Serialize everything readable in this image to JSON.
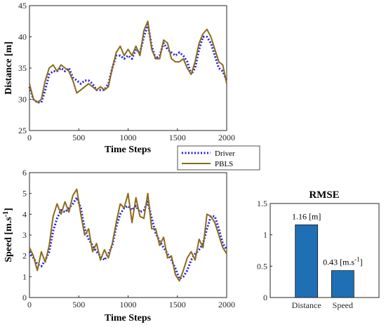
{
  "chart_data": [
    {
      "id": "distance",
      "type": "line",
      "xlabel": "Time Steps",
      "ylabel": "Distance [m]",
      "xlim": [
        0,
        2000
      ],
      "ylim": [
        25,
        45
      ],
      "xticks": [
        "0",
        "500",
        "1000",
        "1500",
        "2000"
      ],
      "yticks": [
        "25",
        "30",
        "35",
        "40",
        "45"
      ],
      "colors": {
        "Driver": "#1f1fe6",
        "PBLS": "#8b6b1a"
      },
      "series": [
        {
          "name": "Driver",
          "x": [
            0,
            40,
            80,
            120,
            160,
            200,
            240,
            280,
            320,
            360,
            400,
            440,
            480,
            520,
            560,
            600,
            640,
            680,
            720,
            760,
            800,
            840,
            880,
            920,
            960,
            1000,
            1040,
            1080,
            1120,
            1160,
            1200,
            1240,
            1280,
            1320,
            1360,
            1400,
            1440,
            1480,
            1520,
            1560,
            1600,
            1640,
            1680,
            1720,
            1760,
            1800,
            1840,
            1880,
            1920,
            1960,
            2000
          ],
          "values": [
            32,
            30,
            29.5,
            29.5,
            31.5,
            34,
            34.5,
            34.5,
            35,
            34.5,
            35,
            33.5,
            33,
            32.5,
            33,
            33,
            32.5,
            31.5,
            31.5,
            31.5,
            32.5,
            35,
            37,
            37,
            36.5,
            37,
            36.5,
            38,
            37.5,
            40,
            42,
            38.5,
            36.5,
            37,
            39,
            38,
            37.5,
            37,
            37.5,
            37,
            36,
            34,
            35,
            38,
            40,
            40,
            39,
            37,
            35,
            34.5,
            33
          ]
        },
        {
          "name": "PBLS",
          "x": [
            0,
            40,
            80,
            120,
            160,
            200,
            240,
            280,
            320,
            360,
            400,
            440,
            480,
            520,
            560,
            600,
            640,
            680,
            720,
            760,
            800,
            840,
            880,
            920,
            960,
            1000,
            1040,
            1080,
            1120,
            1160,
            1200,
            1240,
            1280,
            1320,
            1360,
            1400,
            1440,
            1480,
            1520,
            1560,
            1600,
            1640,
            1680,
            1720,
            1760,
            1800,
            1840,
            1880,
            1920,
            1960,
            2000
          ],
          "values": [
            32.5,
            30,
            29.5,
            30,
            33,
            35,
            35.5,
            34.5,
            35.5,
            35,
            34.5,
            33,
            31,
            31.5,
            32,
            32.5,
            32,
            31.5,
            32,
            31.5,
            32,
            35,
            37.5,
            38.5,
            37,
            38,
            37,
            38.5,
            37,
            41,
            42.5,
            38,
            36.5,
            36.5,
            39.5,
            39,
            36.5,
            36,
            36,
            36.5,
            35,
            34,
            36,
            39,
            40.5,
            41.2,
            40,
            38,
            36,
            35.5,
            32.5
          ]
        }
      ]
    },
    {
      "id": "speed",
      "type": "line",
      "xlabel": "Time Steps",
      "ylabel": "Speed [m.s",
      "ylabel_sup": "-1",
      "ylabel_tail": "]",
      "xlim": [
        0,
        2000
      ],
      "ylim": [
        0,
        6
      ],
      "xticks": [
        "0",
        "500",
        "1000",
        "1500",
        "2000"
      ],
      "yticks": [
        "0",
        "1",
        "2",
        "3",
        "4",
        "5",
        "6"
      ],
      "colors": {
        "Driver": "#1f1fe6",
        "PBLS": "#8b6b1a"
      },
      "series": [
        {
          "name": "Driver",
          "x": [
            0,
            40,
            80,
            120,
            160,
            200,
            240,
            280,
            320,
            360,
            400,
            440,
            480,
            520,
            560,
            600,
            640,
            680,
            720,
            760,
            800,
            840,
            880,
            920,
            960,
            1000,
            1040,
            1080,
            1120,
            1160,
            1200,
            1240,
            1280,
            1320,
            1360,
            1400,
            1440,
            1480,
            1520,
            1560,
            1600,
            1640,
            1680,
            1720,
            1760,
            1800,
            1840,
            1880,
            1920,
            1960,
            2000
          ],
          "values": [
            2.2,
            1.9,
            1.6,
            1.5,
            1.8,
            2.2,
            3.2,
            3.8,
            4.2,
            4.1,
            4.3,
            4.5,
            4.8,
            4.3,
            3.3,
            2.8,
            2.5,
            2.2,
            2,
            1.8,
            2.1,
            2.5,
            3.4,
            4,
            4.3,
            4.4,
            4.2,
            4.4,
            4.1,
            4.2,
            4.6,
            3.8,
            3.1,
            2.7,
            2.4,
            2.1,
            1.8,
            1.4,
            0.9,
            1,
            1.3,
            1.8,
            2.1,
            2.3,
            2.6,
            3.3,
            3.9,
            3.9,
            3.3,
            2.6,
            2.3
          ]
        },
        {
          "name": "PBLS",
          "x": [
            0,
            40,
            80,
            120,
            160,
            200,
            240,
            280,
            320,
            360,
            400,
            440,
            480,
            520,
            560,
            600,
            640,
            680,
            720,
            760,
            800,
            840,
            880,
            920,
            960,
            1000,
            1040,
            1080,
            1120,
            1160,
            1200,
            1240,
            1280,
            1320,
            1360,
            1400,
            1440,
            1480,
            1520,
            1560,
            1600,
            1640,
            1680,
            1720,
            1760,
            1800,
            1840,
            1880,
            1920,
            1960,
            2000
          ],
          "values": [
            2.4,
            2,
            1.3,
            2.2,
            1.7,
            2.5,
            3.9,
            4.5,
            4,
            4.6,
            4.1,
            4.9,
            5.2,
            4,
            3,
            3.3,
            2.2,
            2.6,
            1.8,
            2.3,
            1.9,
            2.6,
            3.6,
            4.5,
            4.3,
            5,
            3.6,
            4.8,
            3.9,
            3.8,
            5,
            3.3,
            3.3,
            2.5,
            2.9,
            1.9,
            2,
            1.1,
            0.8,
            1.3,
            1.9,
            2.2,
            1.8,
            2.8,
            2.4,
            4,
            3.9,
            3.6,
            3,
            2.4,
            2.1
          ]
        }
      ]
    },
    {
      "id": "rmse",
      "type": "bar",
      "title": "RMSE",
      "categories": [
        "Distance",
        "Speed"
      ],
      "values": [
        1.16,
        0.43
      ],
      "data_labels": [
        {
          "text": "1.16 [m]",
          "sup": "",
          "tail": ""
        },
        {
          "text": "0.43 [m.s",
          "sup": "-1",
          "tail": "]"
        }
      ],
      "ylim": [
        0,
        1.5
      ],
      "yticks": [
        "0",
        "0.5",
        "1",
        "1.5"
      ],
      "bar_color": "#1f6fb4"
    }
  ],
  "legend": {
    "entries": [
      {
        "name": "Driver",
        "style": "dotted"
      },
      {
        "name": "PBLS",
        "style": "solid"
      }
    ]
  }
}
